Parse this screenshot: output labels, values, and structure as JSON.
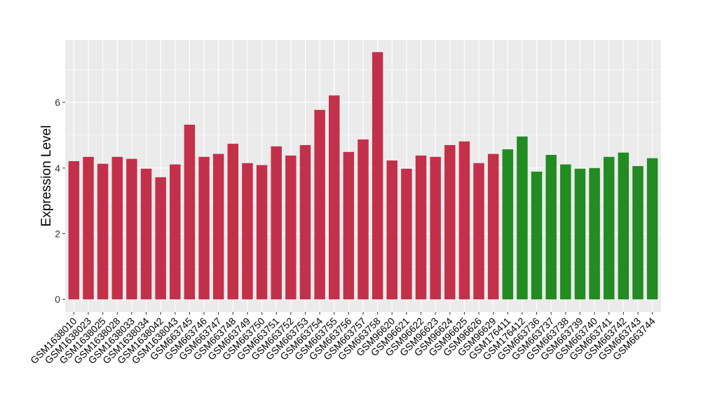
{
  "chart_data": {
    "type": "bar",
    "title": "",
    "xlabel": "",
    "ylabel": "Expression Level",
    "ylim": [
      -0.38,
      7.9
    ],
    "yticks": [
      0,
      2,
      4,
      6
    ],
    "grid": true,
    "legend": "none",
    "colors": {
      "group1": "#C3304A",
      "group2": "#228B22",
      "panel": "#EBEBEB",
      "grid": "#FFFFFF"
    },
    "categories": [
      "GSM1638010",
      "GSM1638023",
      "GSM1638025",
      "GSM1638028",
      "GSM1638033",
      "GSM1638034",
      "GSM1638042",
      "GSM1638043",
      "GSM663745",
      "GSM663746",
      "GSM663747",
      "GSM663748",
      "GSM663749",
      "GSM663750",
      "GSM663751",
      "GSM663752",
      "GSM663753",
      "GSM663754",
      "GSM663755",
      "GSM663756",
      "GSM663757",
      "GSM663758",
      "GSM96620",
      "GSM96621",
      "GSM96622",
      "GSM96623",
      "GSM96624",
      "GSM96625",
      "GSM96626",
      "GSM96629",
      "GSM176411",
      "GSM176412",
      "GSM663736",
      "GSM663737",
      "GSM663738",
      "GSM663739",
      "GSM663740",
      "GSM663741",
      "GSM663742",
      "GSM663743",
      "GSM663744"
    ],
    "values": [
      4.21,
      4.34,
      4.13,
      4.34,
      4.28,
      3.98,
      3.72,
      4.11,
      5.32,
      4.34,
      4.43,
      4.74,
      4.15,
      4.09,
      4.66,
      4.38,
      4.7,
      5.77,
      6.21,
      4.49,
      4.87,
      7.53,
      4.23,
      3.98,
      4.38,
      4.34,
      4.7,
      4.81,
      4.15,
      4.43,
      4.57,
      4.96,
      3.89,
      4.4,
      4.11,
      3.98,
      4.0,
      4.34,
      4.47,
      4.06,
      4.3
    ],
    "groups": [
      1,
      1,
      1,
      1,
      1,
      1,
      1,
      1,
      1,
      1,
      1,
      1,
      1,
      1,
      1,
      1,
      1,
      1,
      1,
      1,
      1,
      1,
      1,
      1,
      1,
      1,
      1,
      1,
      1,
      1,
      2,
      2,
      2,
      2,
      2,
      2,
      2,
      2,
      2,
      2,
      2
    ]
  }
}
